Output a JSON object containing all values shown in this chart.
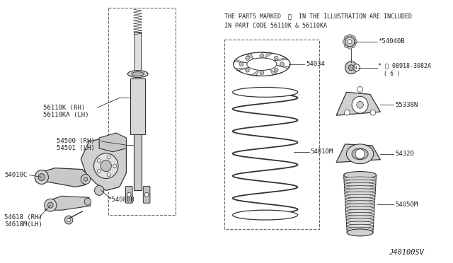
{
  "bg_color": "#ffffff",
  "diagram_code": "J40100SV",
  "notice_line1": "THE PARTS MARKED  *  IN THE ILLUSTRATION ARE INCLUDED",
  "notice_line2": "IN PART CODE 56110K & 56110KA",
  "text_color": "#222222",
  "line_color": "#333333",
  "dashed_color": "#666666"
}
